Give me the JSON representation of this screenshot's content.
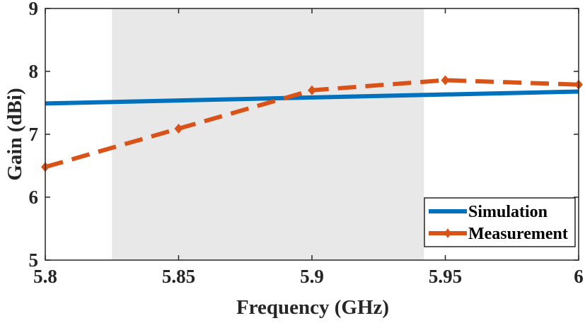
{
  "chart_data": {
    "type": "line",
    "title": "",
    "xlabel": "Frequency (GHz)",
    "ylabel": "Gain (dBi)",
    "xlim": [
      5.8,
      6.0
    ],
    "ylim": [
      5,
      9
    ],
    "xticks": [
      5.8,
      5.85,
      5.9,
      5.95,
      6.0
    ],
    "xtick_labels": [
      "5.8",
      "5.85",
      "5.9",
      "5.95",
      "6"
    ],
    "yticks": [
      5,
      6,
      7,
      8,
      9
    ],
    "ytick_labels": [
      "5",
      "6",
      "7",
      "8",
      "9"
    ],
    "grid": false,
    "legend_position": "bottom-right",
    "shaded_band": {
      "x_start": 5.825,
      "x_end": 5.942,
      "color": "#e8e8e8"
    },
    "series": [
      {
        "name": "Simulation",
        "color": "#0072BD",
        "style": "solid",
        "x": [
          5.8,
          6.0
        ],
        "y": [
          7.49,
          7.68
        ]
      },
      {
        "name": "Measurement",
        "color": "#D95319",
        "style": "dashed",
        "marker": "diamond",
        "x": [
          5.8,
          5.85,
          5.9,
          5.95,
          6.0
        ],
        "y": [
          6.48,
          7.09,
          7.7,
          7.86,
          7.79
        ]
      }
    ]
  }
}
